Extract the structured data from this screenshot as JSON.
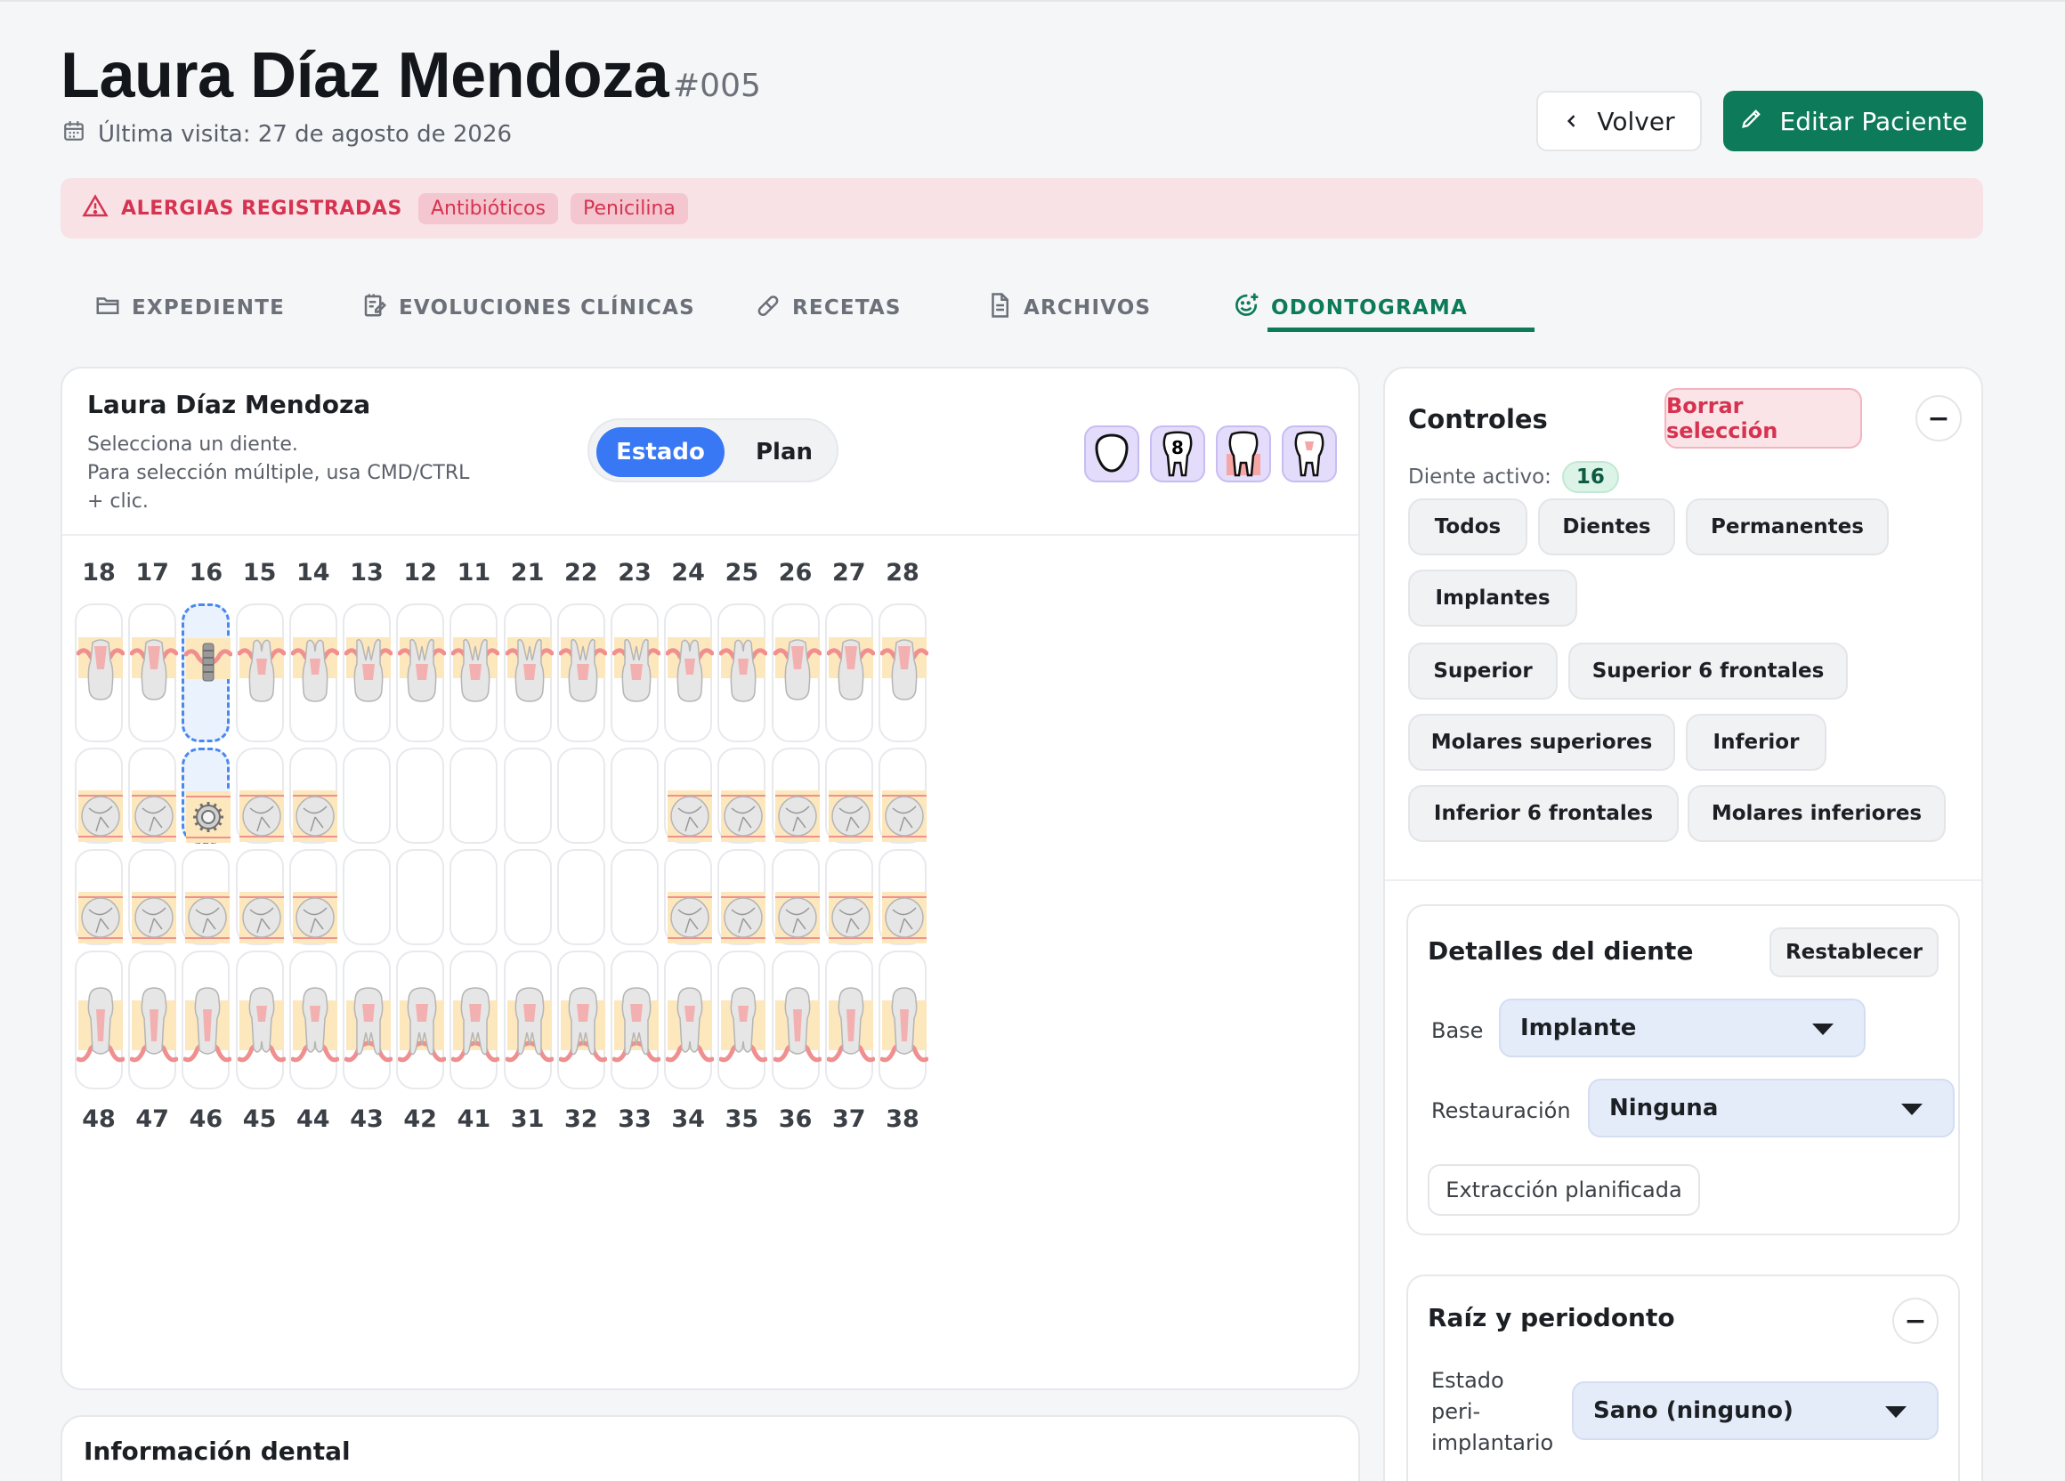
{
  "patient": {
    "name": "Laura Díaz Mendoza",
    "id": "#005",
    "last_visit": "Última visita: 27 de agosto de 2026"
  },
  "header": {
    "back_label": "Volver",
    "edit_label": "Editar Paciente"
  },
  "allergies": {
    "title": "ALERGIAS REGISTRADAS",
    "items": [
      "Antibióticos",
      "Penicilina"
    ]
  },
  "tabs": [
    {
      "label": "EXPEDIENTE",
      "icon": "folder-icon"
    },
    {
      "label": "EVOLUCIONES CLÍNICAS",
      "icon": "notes-edit-icon"
    },
    {
      "label": "RECETAS",
      "icon": "pill-icon"
    },
    {
      "label": "ARCHIVOS",
      "icon": "file-icon"
    },
    {
      "label": "ODONTOGRAMA",
      "icon": "smile-plus-icon",
      "active": true
    }
  ],
  "odontogram": {
    "title": "Laura Díaz Mendoza",
    "help": "Selecciona un diente.\nPara selección múltiple, usa CMD/CTRL + clic.",
    "mode_state": "Estado",
    "mode_plan": "Plan",
    "view_icons": [
      "blank-tooth-view-icon",
      "numbered-tooth-view-icon",
      "gum-tooth-view-icon",
      "root-tooth-view-icon"
    ],
    "upper_numbers": [
      "18",
      "17",
      "16",
      "15",
      "14",
      "13",
      "12",
      "11",
      "21",
      "22",
      "23",
      "24",
      "25",
      "26",
      "27",
      "28"
    ],
    "lower_numbers": [
      "48",
      "47",
      "46",
      "45",
      "44",
      "43",
      "42",
      "41",
      "31",
      "32",
      "33",
      "34",
      "35",
      "36",
      "37",
      "38"
    ],
    "selected_tooth": "16",
    "implant_teeth": [
      "16"
    ]
  },
  "info_card": {
    "title": "Información dental"
  },
  "controls": {
    "title": "Controles",
    "clear_label": "Borrar selección",
    "active_label": "Diente activo:",
    "active_value": "16",
    "filters": [
      "Todos",
      "Dientes",
      "Permanentes",
      "Implantes",
      "Superior",
      "Superior 6 frontales",
      "Molares superiores",
      "Inferior",
      "Inferior 6 frontales",
      "Molares inferiores"
    ]
  },
  "details": {
    "title": "Detalles del diente",
    "reset_label": "Restablecer",
    "base_label": "Base",
    "base_value": "Implante",
    "restoration_label": "Restauración",
    "restoration_value": "Ninguna",
    "extraction_label": "Extracción planificada"
  },
  "root": {
    "title": "Raíz y periodonto",
    "periimplant_label": "Estado peri-implantario",
    "periimplant_value": "Sano (ninguno)"
  },
  "colors": {
    "accent_green": "#0d7a59",
    "accent_blue": "#3878f5",
    "alert_red": "#d63350",
    "gum": "#f08f8f",
    "bone": "#fde7bd"
  }
}
